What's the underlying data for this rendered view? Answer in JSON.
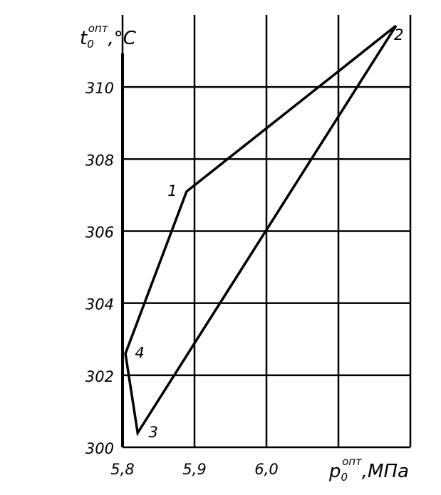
{
  "chart_data": {
    "type": "polygon",
    "y_label": {
      "main": "t",
      "sub": "0",
      "sup": "опт",
      "unit": ",°C"
    },
    "x_label": {
      "main": "p",
      "sub": "0",
      "sup": "опт",
      "unit": ",МПа"
    },
    "xlim": [
      5.8,
      6.2
    ],
    "ylim": [
      300,
      312
    ],
    "xticks": [
      {
        "value": 5.8,
        "label": "5,8"
      },
      {
        "value": 5.9,
        "label": "5,9"
      },
      {
        "value": 6.0,
        "label": "6,0"
      },
      {
        "value": 6.1,
        "label": null
      },
      {
        "value": 6.2,
        "label": null
      }
    ],
    "yticks": [
      300,
      302,
      304,
      306,
      308,
      310
    ],
    "grid": true,
    "color": "#000000",
    "points": {
      "labels": [
        "1",
        "2",
        "3",
        "4"
      ],
      "x": [
        5.889,
        6.18,
        5.821,
        5.804
      ],
      "y": [
        307.1,
        311.7,
        300.4,
        302.6
      ]
    }
  }
}
